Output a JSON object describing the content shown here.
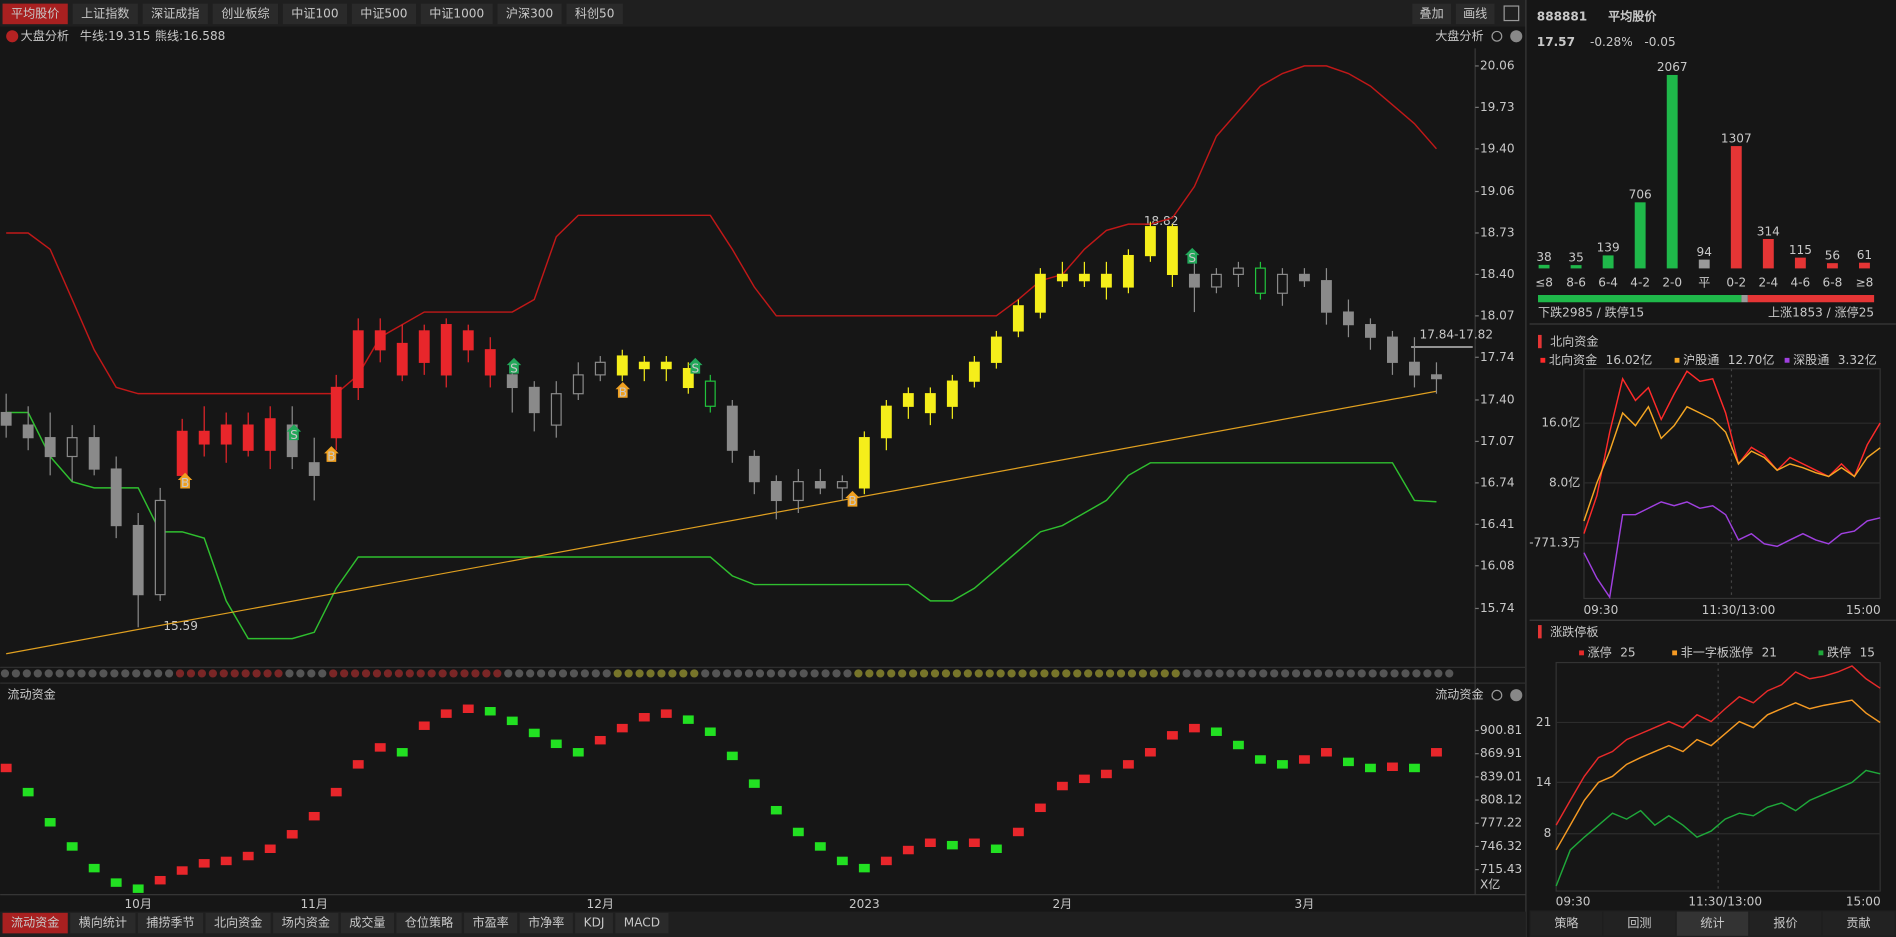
{
  "tabs": [
    "平均股价",
    "上证指数",
    "深证成指",
    "创业板综",
    "中证100",
    "中证500",
    "中证1000",
    "沪深300",
    "科创50"
  ],
  "tools": [
    "叠加",
    "画线"
  ],
  "kline": {
    "type": "candlestick",
    "title": "大盘分析",
    "right_title": "大盘分析",
    "bull_label": "牛线:19.315",
    "bear_label": "熊线:16.588",
    "categories": [
      null,
      null,
      null,
      null,
      null,
      null,
      "10月",
      null,
      null,
      null,
      null,
      null,
      null,
      null,
      "11月",
      null,
      null,
      null,
      null,
      null,
      null,
      null,
      null,
      null,
      null,
      null,
      null,
      "12月",
      null,
      null,
      null,
      null,
      null,
      null,
      null,
      null,
      null,
      null,
      null,
      "2023",
      null,
      null,
      null,
      null,
      null,
      null,
      null,
      null,
      "2月",
      null,
      null,
      null,
      null,
      null,
      null,
      null,
      null,
      null,
      null,
      "3月",
      null,
      null,
      null,
      null,
      null,
      null
    ],
    "ohlc": [
      [
        17.3,
        17.45,
        17.1,
        17.2
      ],
      [
        17.2,
        17.35,
        17.0,
        17.1
      ],
      [
        17.1,
        17.3,
        16.8,
        16.95
      ],
      [
        16.95,
        17.2,
        16.75,
        17.1
      ],
      [
        17.1,
        17.2,
        16.8,
        16.85
      ],
      [
        16.85,
        16.95,
        16.3,
        16.4
      ],
      [
        16.4,
        16.5,
        15.59,
        15.85
      ],
      [
        15.85,
        16.7,
        15.8,
        16.6
      ],
      [
        16.8,
        17.25,
        16.7,
        17.15
      ],
      [
        17.15,
        17.35,
        16.95,
        17.05
      ],
      [
        17.05,
        17.3,
        16.9,
        17.2
      ],
      [
        17.2,
        17.3,
        16.95,
        17.0
      ],
      [
        17.0,
        17.35,
        16.85,
        17.25
      ],
      [
        17.2,
        17.35,
        16.85,
        16.95
      ],
      [
        16.9,
        17.1,
        16.6,
        16.8
      ],
      [
        17.1,
        17.6,
        17.0,
        17.5
      ],
      [
        17.5,
        18.05,
        17.4,
        17.95
      ],
      [
        17.95,
        18.05,
        17.7,
        17.8
      ],
      [
        17.85,
        18.0,
        17.55,
        17.6
      ],
      [
        17.7,
        18.0,
        17.6,
        17.95
      ],
      [
        17.6,
        18.05,
        17.5,
        18.0
      ],
      [
        17.95,
        18.0,
        17.7,
        17.8
      ],
      [
        17.8,
        17.9,
        17.5,
        17.6
      ],
      [
        17.6,
        17.65,
        17.3,
        17.5
      ],
      [
        17.5,
        17.55,
        17.15,
        17.3
      ],
      [
        17.2,
        17.55,
        17.1,
        17.45
      ],
      [
        17.45,
        17.7,
        17.4,
        17.6
      ],
      [
        17.6,
        17.75,
        17.55,
        17.7
      ],
      [
        17.6,
        17.8,
        17.55,
        17.75
      ],
      [
        17.7,
        17.75,
        17.55,
        17.65
      ],
      [
        17.7,
        17.75,
        17.55,
        17.65
      ],
      [
        17.65,
        17.7,
        17.45,
        17.5
      ],
      [
        17.55,
        17.6,
        17.3,
        17.35
      ],
      [
        17.35,
        17.4,
        16.9,
        17.0
      ],
      [
        16.95,
        17.0,
        16.65,
        16.75
      ],
      [
        16.75,
        16.8,
        16.45,
        16.6
      ],
      [
        16.6,
        16.85,
        16.5,
        16.75
      ],
      [
        16.75,
        16.85,
        16.65,
        16.7
      ],
      [
        16.7,
        16.8,
        16.6,
        16.75
      ],
      [
        16.7,
        17.15,
        16.65,
        17.1
      ],
      [
        17.1,
        17.4,
        17.0,
        17.35
      ],
      [
        17.35,
        17.5,
        17.25,
        17.45
      ],
      [
        17.45,
        17.5,
        17.2,
        17.3
      ],
      [
        17.35,
        17.6,
        17.25,
        17.55
      ],
      [
        17.55,
        17.75,
        17.5,
        17.7
      ],
      [
        17.7,
        17.95,
        17.65,
        17.9
      ],
      [
        17.95,
        18.2,
        17.9,
        18.15
      ],
      [
        18.1,
        18.45,
        18.05,
        18.4
      ],
      [
        18.4,
        18.5,
        18.3,
        18.35
      ],
      [
        18.35,
        18.5,
        18.3,
        18.4
      ],
      [
        18.4,
        18.5,
        18.2,
        18.3
      ],
      [
        18.3,
        18.6,
        18.25,
        18.55
      ],
      [
        18.55,
        18.82,
        18.5,
        18.78
      ],
      [
        18.78,
        18.8,
        18.3,
        18.4
      ],
      [
        18.4,
        18.55,
        18.1,
        18.3
      ],
      [
        18.3,
        18.45,
        18.25,
        18.4
      ],
      [
        18.4,
        18.5,
        18.3,
        18.45
      ],
      [
        18.45,
        18.5,
        18.2,
        18.25
      ],
      [
        18.25,
        18.45,
        18.15,
        18.4
      ],
      [
        18.4,
        18.45,
        18.3,
        18.35
      ],
      [
        18.35,
        18.45,
        18.0,
        18.1
      ],
      [
        18.1,
        18.2,
        17.9,
        18.0
      ],
      [
        18.0,
        18.05,
        17.8,
        17.9
      ],
      [
        17.9,
        17.95,
        17.6,
        17.7
      ],
      [
        17.7,
        17.9,
        17.5,
        17.6
      ],
      [
        17.6,
        17.7,
        17.45,
        17.57
      ]
    ],
    "colors": "wwwwwwwwrrrrrwwrrrrrrrrwwwwwyyyygwwwwwwyyyyyyyyyyyyyyywwwgwwwwwwww",
    "palette": {
      "w": "#8a8a8a",
      "r": "#e8262b",
      "y": "#f5ee1b",
      "g": "#21c23c"
    },
    "ylim": [
      15.29,
      20.2
    ],
    "yticks": [
      20.06,
      19.73,
      {
        "value": 19.4,
        "label": "19.40"
      },
      19.06,
      18.73,
      {
        "value": 18.4,
        "label": "18.40"
      },
      18.07,
      17.74,
      {
        "value": 17.4,
        "label": "17.40"
      },
      17.07,
      16.74,
      16.41,
      16.08,
      15.74
    ],
    "upper_line": {
      "color": "#c01818",
      "values": [
        18.73,
        18.73,
        18.6,
        18.2,
        17.8,
        17.5,
        17.45,
        17.45,
        17.45,
        17.45,
        17.45,
        17.45,
        17.45,
        17.45,
        17.45,
        17.45,
        17.6,
        17.9,
        18.0,
        18.1,
        18.1,
        18.1,
        18.1,
        18.1,
        18.2,
        18.7,
        18.87,
        18.87,
        18.87,
        18.87,
        18.87,
        18.87,
        18.87,
        18.6,
        18.3,
        18.07,
        18.07,
        18.07,
        18.07,
        18.07,
        18.07,
        18.07,
        18.07,
        18.07,
        18.07,
        18.07,
        18.2,
        18.35,
        18.4,
        18.6,
        18.75,
        18.8,
        18.8,
        18.85,
        19.1,
        19.5,
        19.7,
        19.9,
        20.0,
        20.06,
        20.06,
        20.0,
        19.9,
        19.75,
        19.6,
        19.4
      ]
    },
    "lower_line": {
      "color": "#2fbf2f",
      "values": [
        17.3,
        17.3,
        16.95,
        16.75,
        16.7,
        16.7,
        16.7,
        16.35,
        16.35,
        16.3,
        15.8,
        15.5,
        15.5,
        15.5,
        15.55,
        15.9,
        16.15,
        16.15,
        16.15,
        16.15,
        16.15,
        16.15,
        16.15,
        16.15,
        16.15,
        16.15,
        16.15,
        16.15,
        16.15,
        16.15,
        16.15,
        16.15,
        16.15,
        16.0,
        15.93,
        15.93,
        15.93,
        15.93,
        15.93,
        15.93,
        15.93,
        15.93,
        15.8,
        15.8,
        15.9,
        16.05,
        16.2,
        16.35,
        16.4,
        16.5,
        16.6,
        16.8,
        16.9,
        16.9,
        16.9,
        16.9,
        16.9,
        16.9,
        16.9,
        16.9,
        16.9,
        16.9,
        16.9,
        16.9,
        16.6,
        16.59
      ]
    },
    "trend_line": {
      "color": "#e0a020",
      "values": [
        15.38,
        17.47
      ]
    },
    "low_label": "15.59",
    "high_label": "18.82",
    "price_tag": "17.84-17.82",
    "signal_labels": [
      "B",
      "S"
    ]
  },
  "flow": {
    "title": "流动资金",
    "right_title": "流动资金",
    "unit": "X亿",
    "ylim": [
      682,
      935
    ],
    "yticks": [
      900.81,
      869.91,
      839.01,
      808.12,
      777.22,
      746.32,
      715.43
    ],
    "up_color": "#e8262b",
    "down_color": "#22e022",
    "values": [
      850.9,
      818.7,
      778.5,
      746.3,
      717.4,
      698.1,
      690,
      701.3,
      714.2,
      723.8,
      727,
      733.5,
      743.2,
      762.5,
      786.6,
      818.7,
      855.7,
      878.3,
      871.8,
      907.2,
      923.3,
      929.8,
      926.5,
      913.7,
      897.6,
      883.1,
      871.8,
      887.9,
      904,
      918.5,
      923.3,
      915.3,
      899.2,
      867,
      830,
      794.6,
      765.6,
      746.3,
      727,
      717.4,
      727,
      741.5,
      751.2,
      748,
      751.2,
      743.2,
      765.6,
      797.8,
      826.8,
      836.4,
      842.9,
      855.7,
      871.8,
      894.4,
      904,
      899.2,
      881.5,
      862.2,
      855.7,
      862.2,
      871.8,
      859,
      850.9,
      852.5,
      850.9,
      871.8
    ]
  },
  "bottom_tabs": [
    "流动资金",
    "横向统计",
    "捕捞季节",
    "北向资金",
    "场内资金",
    "成交量",
    "仓位策略",
    "市盈率",
    "市净率",
    "KDJ",
    "MACD"
  ],
  "quote": {
    "code": "888881",
    "name": "平均股价",
    "price": "17.57",
    "change_pct": "-0.28%",
    "change": "-0.05"
  },
  "dist": {
    "type": "bar",
    "categories": [
      "≤8",
      "8-6",
      "6-4",
      "4-2",
      "2-0",
      "平",
      "0-2",
      "2-4",
      "4-6",
      "6-8",
      "≥8"
    ],
    "values": [
      38,
      35,
      139,
      706,
      2067,
      94,
      1307,
      314,
      115,
      56,
      61
    ],
    "colors": [
      "#1fb84a",
      "#1fb84a",
      "#1fb84a",
      "#1fb84a",
      "#1fb84a",
      "#9a9a9a",
      "#e53535",
      "#e53535",
      "#e53535",
      "#e53535",
      "#e53535"
    ],
    "fall_text": "下跌2985 / 跌停15",
    "rise_text": "上涨1853 / 涨停25"
  },
  "north": {
    "type": "line",
    "title": "北向资金",
    "categories": [
      "09:30",
      null,
      null,
      null,
      null,
      null,
      null,
      null,
      null,
      null,
      null,
      null,
      "11:30/13:00",
      null,
      null,
      null,
      null,
      null,
      null,
      null,
      null,
      null,
      null,
      "15:00"
    ],
    "ylim": [
      -7.5,
      23.3
    ],
    "yticks": [
      {
        "value": 16,
        "label": "16.0亿"
      },
      {
        "value": 8,
        "label": "8.0亿"
      },
      {
        "value": -0.07713,
        "label": "-771.3万"
      }
    ],
    "series": [
      {
        "name": "北向资金",
        "current": "16.02亿",
        "color": "#ff2a2a",
        "values": [
          1.19,
          6.3,
          14.81,
          21.96,
          19.06,
          20.77,
          16.51,
          19.91,
          22.98,
          21.62,
          21.96,
          17.36,
          10.55,
          12.77,
          11.74,
          9.7,
          11.4,
          10.55,
          9.7,
          8.85,
          10.55,
          8.85,
          13.11,
          16.02
        ]
      },
      {
        "name": "沪股通",
        "current": "12.70亿",
        "color": "#f5a623",
        "values": [
          2.89,
          8.0,
          12.26,
          17.36,
          15.66,
          18.21,
          13.96,
          15.66,
          18.21,
          17.36,
          16.51,
          14.81,
          10.55,
          12.26,
          11.4,
          9.7,
          10.55,
          10.04,
          9.36,
          8.85,
          10.04,
          8.85,
          11.4,
          12.7
        ]
      },
      {
        "name": "深股通",
        "current": "3.32亿",
        "color": "#a040e0",
        "values": [
          -1.36,
          -4.77,
          -7.32,
          3.74,
          3.74,
          4.6,
          5.45,
          4.94,
          5.45,
          4.6,
          4.94,
          3.74,
          0.34,
          1.19,
          -0.17,
          -0.51,
          0.34,
          1.19,
          0.34,
          -0.17,
          1.19,
          1.53,
          2.89,
          3.32
        ]
      }
    ]
  },
  "limit": {
    "type": "line",
    "title": "涨跌停板",
    "categories": [
      "09:30",
      null,
      null,
      null,
      null,
      null,
      null,
      null,
      null,
      null,
      null,
      null,
      "11:30/13:00",
      null,
      null,
      null,
      null,
      null,
      null,
      null,
      null,
      null,
      null,
      "15:00"
    ],
    "ylim": [
      1.3,
      28
    ],
    "yticks": [
      21,
      14,
      8
    ],
    "series": [
      {
        "name": "涨停",
        "current": 25,
        "color": "#e82a2a",
        "values": [
          9,
          11.9,
          14.7,
          16.9,
          17.6,
          19,
          19.7,
          20.4,
          21.1,
          20.4,
          21.9,
          21.1,
          22.6,
          24,
          23.3,
          24.7,
          25.4,
          26.9,
          26.1,
          26.4,
          26.9,
          27.6,
          26.1,
          25
        ]
      },
      {
        "name": "非一字板涨停",
        "current": 21,
        "color": "#f59a23",
        "values": [
          6.1,
          9,
          11.9,
          14,
          14.7,
          16.1,
          16.9,
          17.6,
          18.3,
          17.6,
          19,
          18.3,
          19.7,
          21.1,
          20.4,
          21.9,
          22.6,
          23.3,
          22.6,
          23,
          23.3,
          23.6,
          22.1,
          21
        ]
      },
      {
        "name": "跌停",
        "current": 15,
        "color": "#1fa83a",
        "values": [
          1.9,
          6.1,
          7.6,
          9,
          10.4,
          9.7,
          10.7,
          9,
          10.1,
          9,
          7.6,
          8.3,
          9.7,
          10.4,
          10.1,
          11.1,
          11.6,
          10.7,
          11.9,
          12.6,
          13.3,
          14,
          15.4,
          15
        ]
      }
    ]
  },
  "side_tabs": [
    "策略",
    "回测",
    "统计",
    "报价",
    "贡献"
  ]
}
